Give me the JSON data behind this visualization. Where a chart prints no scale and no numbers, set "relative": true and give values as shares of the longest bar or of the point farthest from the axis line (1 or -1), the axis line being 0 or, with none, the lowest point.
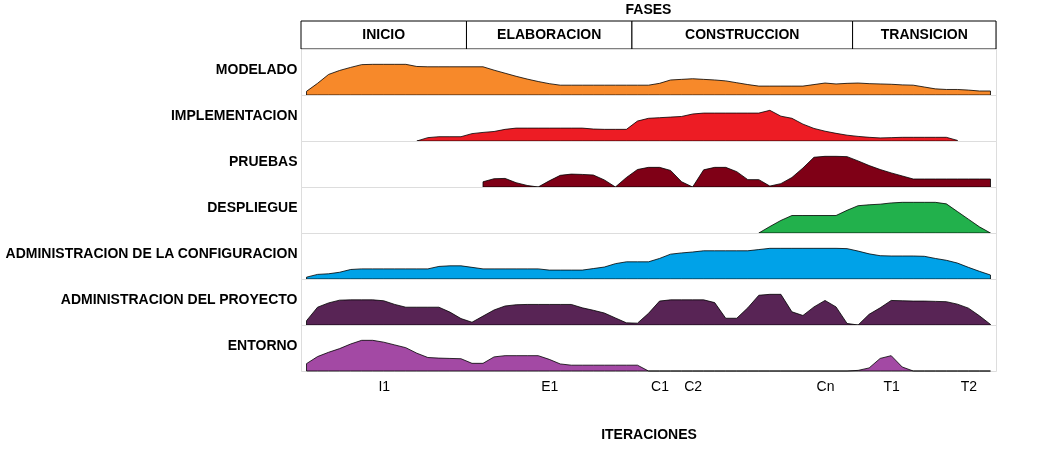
{
  "chart_data": [
    {
      "type": "other",
      "title": "FASES",
      "annotations": [
        "INICIO",
        "ELABORACION",
        "CONSTRUCCION",
        "TRANSICION"
      ]
    },
    {
      "type": "area",
      "relative": true,
      "ylabel": "MODELADO",
      "tick_labels": false,
      "categories": [
        null,
        null,
        null,
        null,
        null,
        null,
        null,
        null,
        null,
        null,
        null,
        null,
        null,
        null,
        null,
        null,
        null,
        null,
        null,
        null,
        null,
        null,
        null,
        null,
        null,
        null,
        null,
        null,
        null,
        null,
        null,
        null,
        null,
        null,
        null,
        null,
        null,
        null,
        null,
        null,
        null,
        null,
        null,
        null,
        null,
        null,
        null,
        null,
        null,
        null,
        null,
        null,
        null,
        null,
        null,
        null,
        null,
        null,
        null,
        null,
        null,
        null,
        null
      ],
      "series": [
        {
          "color": "#f7892a",
          "values": [
            0.12,
            0.38,
            0.67,
            0.8,
            0.9,
            0.99,
            1,
            1,
            1,
            1,
            0.93,
            0.92,
            0.92,
            0.92,
            0.92,
            0.92,
            0.92,
            0.81,
            0.71,
            0.61,
            0.52,
            0.44,
            0.37,
            0.32,
            0.32,
            0.32,
            0.32,
            0.32,
            0.32,
            0.32,
            0.32,
            0.32,
            0.38,
            0.49,
            0.51,
            0.53,
            0.51,
            0.49,
            0.46,
            0.4,
            0.34,
            0.29,
            0.29,
            0.29,
            0.29,
            0.29,
            0.34,
            0.39,
            0.36,
            0.38,
            0.39,
            0.37,
            0.36,
            0.35,
            0.33,
            0.32,
            0.26,
            0.2,
            0.18,
            0.18,
            0.16,
            0.13,
            0.13
          ]
        }
      ]
    },
    {
      "type": "area",
      "relative": true,
      "ylabel": "IMPLEMENTACION",
      "tick_labels": false,
      "categories": [
        null,
        null,
        null,
        null,
        null,
        null,
        null,
        null,
        null,
        null,
        null,
        null,
        null,
        null,
        null,
        null,
        null,
        null,
        null,
        null,
        null,
        null,
        null,
        null,
        null,
        null,
        null,
        null,
        null,
        null,
        null,
        null,
        null,
        null,
        null,
        null,
        null,
        null,
        null,
        null,
        null,
        null,
        null,
        null,
        null,
        null,
        null,
        null,
        null,
        null,
        null,
        null,
        null,
        null,
        null,
        null,
        null,
        null,
        null,
        null,
        null,
        null,
        null
      ],
      "series": [
        {
          "color": "#ed1c24",
          "values": [
            null,
            null,
            null,
            null,
            null,
            null,
            null,
            null,
            null,
            null,
            0,
            0.11,
            0.14,
            0.14,
            0.14,
            0.24,
            0.28,
            0.31,
            0.38,
            0.42,
            0.42,
            0.42,
            0.42,
            0.42,
            0.42,
            0.42,
            0.39,
            0.38,
            0.38,
            0.38,
            0.65,
            0.74,
            0.76,
            0.78,
            0.8,
            0.88,
            0.91,
            0.91,
            0.91,
            0.91,
            0.91,
            0.91,
            1,
            0.81,
            0.74,
            0.55,
            0.41,
            0.32,
            0.25,
            0.19,
            0.15,
            0.12,
            0.1,
            0.11,
            0.12,
            0.12,
            0.12,
            0.12,
            0.12,
            0.02,
            null,
            null,
            null
          ]
        }
      ]
    },
    {
      "type": "area",
      "relative": true,
      "ylabel": "PRUEBAS",
      "tick_labels": false,
      "categories": [
        null,
        null,
        null,
        null,
        null,
        null,
        null,
        null,
        null,
        null,
        null,
        null,
        null,
        null,
        null,
        null,
        null,
        null,
        null,
        null,
        null,
        null,
        null,
        null,
        null,
        null,
        null,
        null,
        null,
        null,
        null,
        null,
        null,
        null,
        null,
        null,
        null,
        null,
        null,
        null,
        null,
        null,
        null,
        null,
        null,
        null,
        null,
        null,
        null,
        null,
        null,
        null,
        null,
        null,
        null,
        null,
        null,
        null,
        null,
        null,
        null,
        null,
        null
      ],
      "series": [
        {
          "color": "#7f0016",
          "values": [
            null,
            null,
            null,
            null,
            null,
            null,
            null,
            null,
            null,
            null,
            null,
            null,
            null,
            null,
            null,
            null,
            0.17,
            0.27,
            0.28,
            0.14,
            0.05,
            0,
            0.2,
            0.38,
            0.42,
            0.41,
            0.39,
            0.23,
            0,
            0.31,
            0.57,
            0.64,
            0.64,
            0.54,
            0.17,
            0,
            0.56,
            0.64,
            0.64,
            0.5,
            0.24,
            0.24,
            0.03,
            0.11,
            0.31,
            0.62,
            0.97,
            1,
            1,
            0.99,
            0.85,
            0.7,
            0.57,
            0.46,
            0.36,
            0.26,
            0.26,
            0.26,
            0.26,
            0.26,
            0.26,
            0.26,
            0.26
          ]
        }
      ]
    },
    {
      "type": "area",
      "relative": true,
      "ylabel": "DESPLIEGUE",
      "tick_labels": false,
      "categories": [
        null,
        null,
        null,
        null,
        null,
        null,
        null,
        null,
        null,
        null,
        null,
        null,
        null,
        null,
        null,
        null,
        null,
        null,
        null,
        null,
        null,
        null,
        null,
        null,
        null,
        null,
        null,
        null,
        null,
        null,
        null,
        null,
        null,
        null,
        null,
        null,
        null,
        null,
        null,
        null,
        null,
        null,
        null,
        null,
        null,
        null,
        null,
        null,
        null,
        null,
        null,
        null,
        null,
        null,
        null,
        null,
        null,
        null,
        null,
        null,
        null,
        null,
        null
      ],
      "series": [
        {
          "color": "#22b14c",
          "values": [
            null,
            null,
            null,
            null,
            null,
            null,
            null,
            null,
            null,
            null,
            null,
            null,
            null,
            null,
            null,
            null,
            null,
            null,
            null,
            null,
            null,
            null,
            null,
            null,
            null,
            null,
            null,
            null,
            null,
            null,
            null,
            null,
            null,
            null,
            null,
            null,
            null,
            null,
            null,
            null,
            null,
            0,
            0.21,
            0.41,
            0.57,
            0.57,
            0.57,
            0.57,
            0.57,
            0.74,
            0.89,
            0.92,
            0.94,
            0.98,
            1,
            1,
            1,
            1,
            0.95,
            0.7,
            0.45,
            0.2,
            0
          ]
        }
      ]
    },
    {
      "type": "area",
      "relative": true,
      "ylabel": "ADMINISTRACION DE LA CONFIGURACION",
      "tick_labels": false,
      "categories": [
        null,
        null,
        null,
        null,
        null,
        null,
        null,
        null,
        null,
        null,
        null,
        null,
        null,
        null,
        null,
        null,
        null,
        null,
        null,
        null,
        null,
        null,
        null,
        null,
        null,
        null,
        null,
        null,
        null,
        null,
        null,
        null,
        null,
        null,
        null,
        null,
        null,
        null,
        null,
        null,
        null,
        null,
        null,
        null,
        null,
        null,
        null,
        null,
        null,
        null,
        null,
        null,
        null,
        null,
        null,
        null,
        null,
        null,
        null,
        null,
        null,
        null,
        null
      ],
      "series": [
        {
          "color": "#00a2e8",
          "values": [
            0.06,
            0.15,
            0.17,
            0.22,
            0.31,
            0.33,
            0.33,
            0.33,
            0.33,
            0.33,
            0.33,
            0.33,
            0.41,
            0.43,
            0.43,
            0.38,
            0.33,
            0.33,
            0.33,
            0.33,
            0.33,
            0.33,
            0.29,
            0.29,
            0.29,
            0.29,
            0.34,
            0.39,
            0.5,
            0.56,
            0.56,
            0.56,
            0.67,
            0.81,
            0.85,
            0.88,
            0.92,
            0.92,
            0.92,
            0.92,
            0.92,
            0.96,
            1,
            1,
            1,
            1,
            1,
            1,
            1,
            0.99,
            0.91,
            0.82,
            0.76,
            0.75,
            0.75,
            0.75,
            0.74,
            0.67,
            0.61,
            0.52,
            0.38,
            0.25,
            0.13
          ]
        }
      ]
    },
    {
      "type": "area",
      "relative": true,
      "ylabel": "ADMINISTRACION DEL PROYECTO",
      "tick_labels": false,
      "categories": [
        null,
        null,
        null,
        null,
        null,
        null,
        null,
        null,
        null,
        null,
        null,
        null,
        null,
        null,
        null,
        null,
        null,
        null,
        null,
        null,
        null,
        null,
        null,
        null,
        null,
        null,
        null,
        null,
        null,
        null,
        null,
        null,
        null,
        null,
        null,
        null,
        null,
        null,
        null,
        null,
        null,
        null,
        null,
        null,
        null,
        null,
        null,
        null,
        null,
        null,
        null,
        null,
        null,
        null,
        null,
        null,
        null,
        null,
        null,
        null,
        null,
        null,
        null
      ],
      "series": [
        {
          "color": "#582455",
          "values": [
            0.14,
            0.58,
            0.72,
            0.81,
            0.82,
            0.82,
            0.82,
            0.79,
            0.67,
            0.58,
            0.58,
            0.58,
            0.58,
            0.42,
            0.21,
            0.09,
            0.29,
            0.49,
            0.62,
            0.66,
            0.67,
            0.67,
            0.67,
            0.67,
            0.67,
            0.56,
            0.48,
            0.39,
            0.23,
            0.07,
            0.06,
            0.38,
            0.78,
            0.82,
            0.82,
            0.82,
            0.82,
            0.73,
            0.22,
            0.22,
            0.56,
            0.97,
            1,
            1,
            0.43,
            0.31,
            0.59,
            0.8,
            0.59,
            0.05,
            0,
            0.35,
            0.56,
            0.8,
            0.79,
            0.78,
            0.78,
            0.77,
            0.76,
            0.68,
            0.55,
            0.3,
            0.02
          ]
        }
      ]
    },
    {
      "type": "area",
      "relative": true,
      "ylabel": "ENTORNO",
      "xlabel": "ITERACIONES",
      "tick_labels": "x",
      "categories": [
        null,
        null,
        null,
        null,
        null,
        null,
        null,
        "I1",
        null,
        null,
        null,
        null,
        null,
        null,
        null,
        null,
        null,
        null,
        null,
        null,
        null,
        null,
        "E1",
        null,
        null,
        null,
        null,
        null,
        null,
        null,
        null,
        null,
        "C1",
        null,
        null,
        "C2",
        null,
        null,
        null,
        null,
        null,
        null,
        null,
        null,
        null,
        null,
        null,
        "Cn",
        null,
        null,
        null,
        null,
        null,
        "T1",
        null,
        null,
        null,
        null,
        null,
        null,
        "T2",
        null,
        null
      ],
      "series": [
        {
          "color": "#a349a4",
          "values": [
            0.24,
            0.47,
            0.61,
            0.73,
            0.88,
            1,
            1,
            0.94,
            0.85,
            0.76,
            0.58,
            0.44,
            0.42,
            0.41,
            0.4,
            0.25,
            0.25,
            0.46,
            0.5,
            0.5,
            0.5,
            0.5,
            0.38,
            0.23,
            0.19,
            0.19,
            0.19,
            0.19,
            0.19,
            0.19,
            0.19,
            0,
            0,
            0,
            0,
            0,
            0,
            0,
            0,
            0,
            0,
            0,
            0,
            0,
            0,
            0,
            0,
            0,
            0,
            0,
            0.02,
            0.1,
            0.41,
            0.5,
            0.13,
            0,
            0,
            0,
            0,
            0,
            0,
            0,
            0
          ]
        }
      ]
    }
  ]
}
